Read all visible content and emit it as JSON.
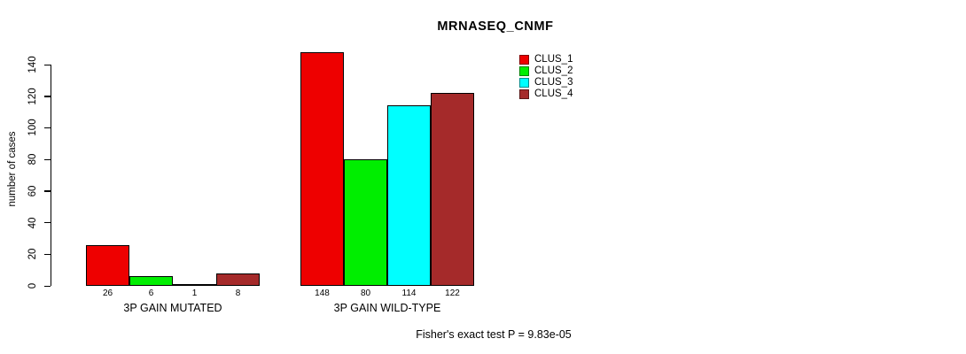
{
  "chart_data": {
    "type": "bar",
    "title": "MRNASEQ_CNMF",
    "ylabel": "number of cases",
    "xlabel": "",
    "ylim": [
      0,
      148
    ],
    "yticks": [
      0,
      20,
      40,
      60,
      80,
      100,
      120,
      140
    ],
    "grid": false,
    "legend_position": "top-right",
    "categories": [
      "3P GAIN MUTATED",
      "3P GAIN WILD-TYPE"
    ],
    "series": [
      {
        "name": "CLUS_1",
        "color": "#ee0000",
        "values": [
          26,
          148
        ]
      },
      {
        "name": "CLUS_2",
        "color": "#00ee00",
        "values": [
          6,
          80
        ]
      },
      {
        "name": "CLUS_3",
        "color": "#00ffff",
        "values": [
          1,
          114
        ]
      },
      {
        "name": "CLUS_4",
        "color": "#a52a2a",
        "values": [
          8,
          122
        ]
      }
    ],
    "bar_value_labels": [
      [
        26,
        6,
        1,
        8
      ],
      [
        148,
        80,
        114,
        122
      ]
    ],
    "annotation": "Fisher's exact test P = 9.83e-05"
  }
}
